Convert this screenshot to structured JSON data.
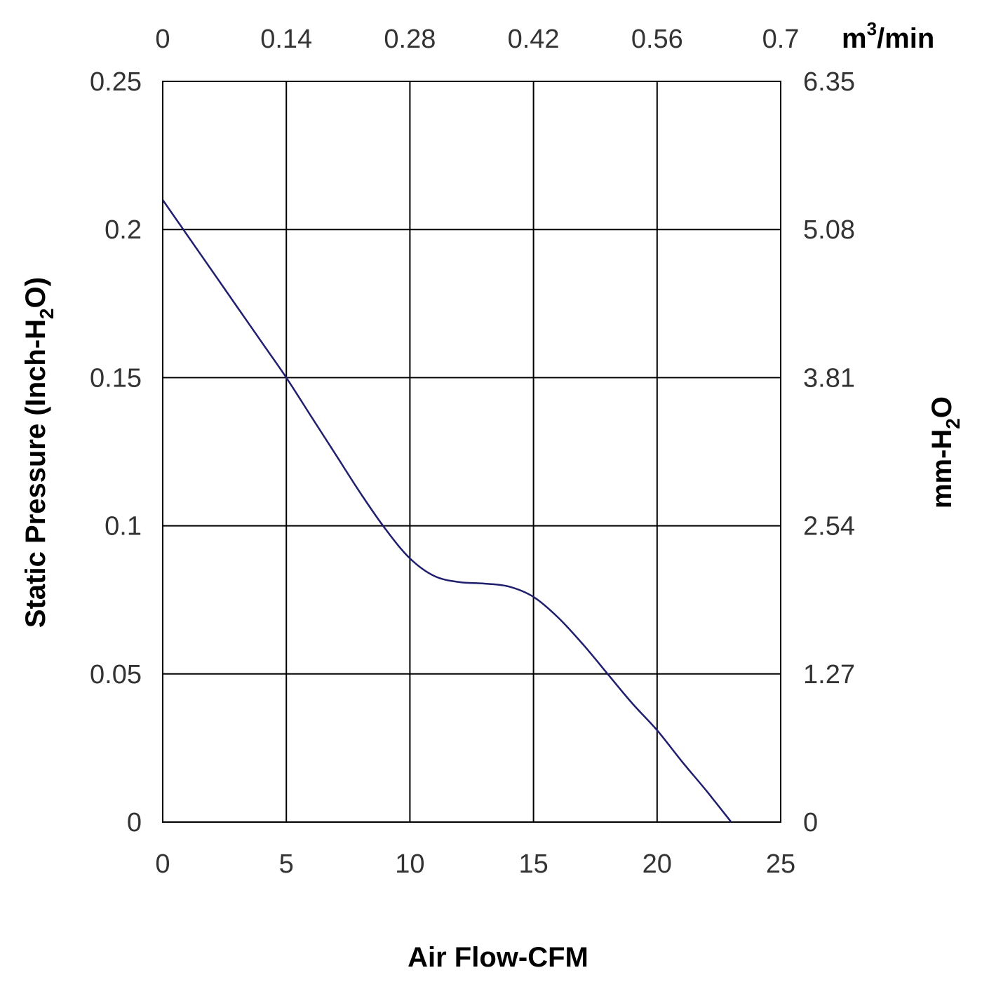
{
  "chart_data": {
    "type": "line",
    "x": [
      0,
      1,
      2,
      3,
      4,
      5,
      6,
      7,
      8,
      9,
      10,
      11,
      12,
      13,
      14,
      15,
      16,
      17,
      18,
      19,
      20,
      21,
      22,
      23
    ],
    "series": [
      {
        "values": [
          0.21,
          0.198,
          0.186,
          0.174,
          0.162,
          0.15,
          0.137,
          0.124,
          0.111,
          0.099,
          0.089,
          0.083,
          0.081,
          0.0805,
          0.0795,
          0.076,
          0.069,
          0.06,
          0.05,
          0.04,
          0.031,
          0.0205,
          0.0105,
          0.0
        ]
      }
    ],
    "xlabel": "Air Flow-CFM",
    "ylabel": {
      "text": "Static Pressure (Inch-H",
      "sub": "2",
      "tail": "O)"
    },
    "y2label": {
      "text": "mm-H",
      "sub": "2",
      "tail": "O"
    },
    "x2label": {
      "text": "m",
      "sup": "3",
      "tail": "/min"
    },
    "xlim": [
      0,
      25
    ],
    "ylim": [
      0,
      0.25
    ],
    "xticks": [
      "0",
      "5",
      "10",
      "15",
      "20",
      "25"
    ],
    "yticks": [
      "0",
      "0.05",
      "0.1",
      "0.15",
      "0.2",
      "0.25"
    ],
    "x2ticks": [
      "0",
      "0.14",
      "0.28",
      "0.42",
      "0.56",
      "0.7"
    ],
    "y2ticks": [
      "0",
      "1.27",
      "2.54",
      "3.81",
      "5.08",
      "6.35"
    ],
    "grid": true,
    "line_color": "#1f1f6e"
  }
}
